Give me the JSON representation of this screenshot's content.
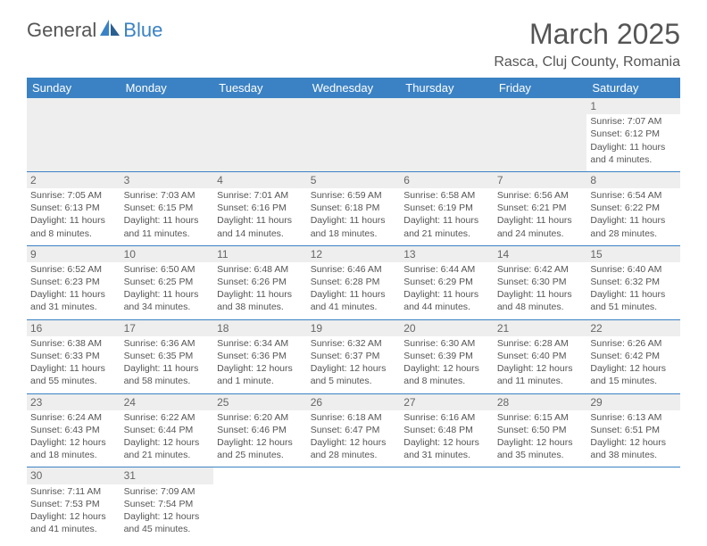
{
  "logo": {
    "text1": "General",
    "text2": "Blue"
  },
  "title": "March 2025",
  "location": "Rasca, Cluj County, Romania",
  "colors": {
    "header_bg": "#3b82c4",
    "header_text": "#ffffff",
    "body_text": "#555555",
    "daynum_bg": "#eeeeee",
    "cell_border": "#3b82c4"
  },
  "day_headers": [
    "Sunday",
    "Monday",
    "Tuesday",
    "Wednesday",
    "Thursday",
    "Friday",
    "Saturday"
  ],
  "weeks": [
    [
      null,
      null,
      null,
      null,
      null,
      null,
      {
        "n": "1",
        "sr": "7:07 AM",
        "ss": "6:12 PM",
        "dl": "11 hours and 4 minutes."
      }
    ],
    [
      {
        "n": "2",
        "sr": "7:05 AM",
        "ss": "6:13 PM",
        "dl": "11 hours and 8 minutes."
      },
      {
        "n": "3",
        "sr": "7:03 AM",
        "ss": "6:15 PM",
        "dl": "11 hours and 11 minutes."
      },
      {
        "n": "4",
        "sr": "7:01 AM",
        "ss": "6:16 PM",
        "dl": "11 hours and 14 minutes."
      },
      {
        "n": "5",
        "sr": "6:59 AM",
        "ss": "6:18 PM",
        "dl": "11 hours and 18 minutes."
      },
      {
        "n": "6",
        "sr": "6:58 AM",
        "ss": "6:19 PM",
        "dl": "11 hours and 21 minutes."
      },
      {
        "n": "7",
        "sr": "6:56 AM",
        "ss": "6:21 PM",
        "dl": "11 hours and 24 minutes."
      },
      {
        "n": "8",
        "sr": "6:54 AM",
        "ss": "6:22 PM",
        "dl": "11 hours and 28 minutes."
      }
    ],
    [
      {
        "n": "9",
        "sr": "6:52 AM",
        "ss": "6:23 PM",
        "dl": "11 hours and 31 minutes."
      },
      {
        "n": "10",
        "sr": "6:50 AM",
        "ss": "6:25 PM",
        "dl": "11 hours and 34 minutes."
      },
      {
        "n": "11",
        "sr": "6:48 AM",
        "ss": "6:26 PM",
        "dl": "11 hours and 38 minutes."
      },
      {
        "n": "12",
        "sr": "6:46 AM",
        "ss": "6:28 PM",
        "dl": "11 hours and 41 minutes."
      },
      {
        "n": "13",
        "sr": "6:44 AM",
        "ss": "6:29 PM",
        "dl": "11 hours and 44 minutes."
      },
      {
        "n": "14",
        "sr": "6:42 AM",
        "ss": "6:30 PM",
        "dl": "11 hours and 48 minutes."
      },
      {
        "n": "15",
        "sr": "6:40 AM",
        "ss": "6:32 PM",
        "dl": "11 hours and 51 minutes."
      }
    ],
    [
      {
        "n": "16",
        "sr": "6:38 AM",
        "ss": "6:33 PM",
        "dl": "11 hours and 55 minutes."
      },
      {
        "n": "17",
        "sr": "6:36 AM",
        "ss": "6:35 PM",
        "dl": "11 hours and 58 minutes."
      },
      {
        "n": "18",
        "sr": "6:34 AM",
        "ss": "6:36 PM",
        "dl": "12 hours and 1 minute."
      },
      {
        "n": "19",
        "sr": "6:32 AM",
        "ss": "6:37 PM",
        "dl": "12 hours and 5 minutes."
      },
      {
        "n": "20",
        "sr": "6:30 AM",
        "ss": "6:39 PM",
        "dl": "12 hours and 8 minutes."
      },
      {
        "n": "21",
        "sr": "6:28 AM",
        "ss": "6:40 PM",
        "dl": "12 hours and 11 minutes."
      },
      {
        "n": "22",
        "sr": "6:26 AM",
        "ss": "6:42 PM",
        "dl": "12 hours and 15 minutes."
      }
    ],
    [
      {
        "n": "23",
        "sr": "6:24 AM",
        "ss": "6:43 PM",
        "dl": "12 hours and 18 minutes."
      },
      {
        "n": "24",
        "sr": "6:22 AM",
        "ss": "6:44 PM",
        "dl": "12 hours and 21 minutes."
      },
      {
        "n": "25",
        "sr": "6:20 AM",
        "ss": "6:46 PM",
        "dl": "12 hours and 25 minutes."
      },
      {
        "n": "26",
        "sr": "6:18 AM",
        "ss": "6:47 PM",
        "dl": "12 hours and 28 minutes."
      },
      {
        "n": "27",
        "sr": "6:16 AM",
        "ss": "6:48 PM",
        "dl": "12 hours and 31 minutes."
      },
      {
        "n": "28",
        "sr": "6:15 AM",
        "ss": "6:50 PM",
        "dl": "12 hours and 35 minutes."
      },
      {
        "n": "29",
        "sr": "6:13 AM",
        "ss": "6:51 PM",
        "dl": "12 hours and 38 minutes."
      }
    ],
    [
      {
        "n": "30",
        "sr": "7:11 AM",
        "ss": "7:53 PM",
        "dl": "12 hours and 41 minutes."
      },
      {
        "n": "31",
        "sr": "7:09 AM",
        "ss": "7:54 PM",
        "dl": "12 hours and 45 minutes."
      },
      null,
      null,
      null,
      null,
      null
    ]
  ],
  "labels": {
    "sunrise": "Sunrise: ",
    "sunset": "Sunset: ",
    "daylight": "Daylight: "
  }
}
